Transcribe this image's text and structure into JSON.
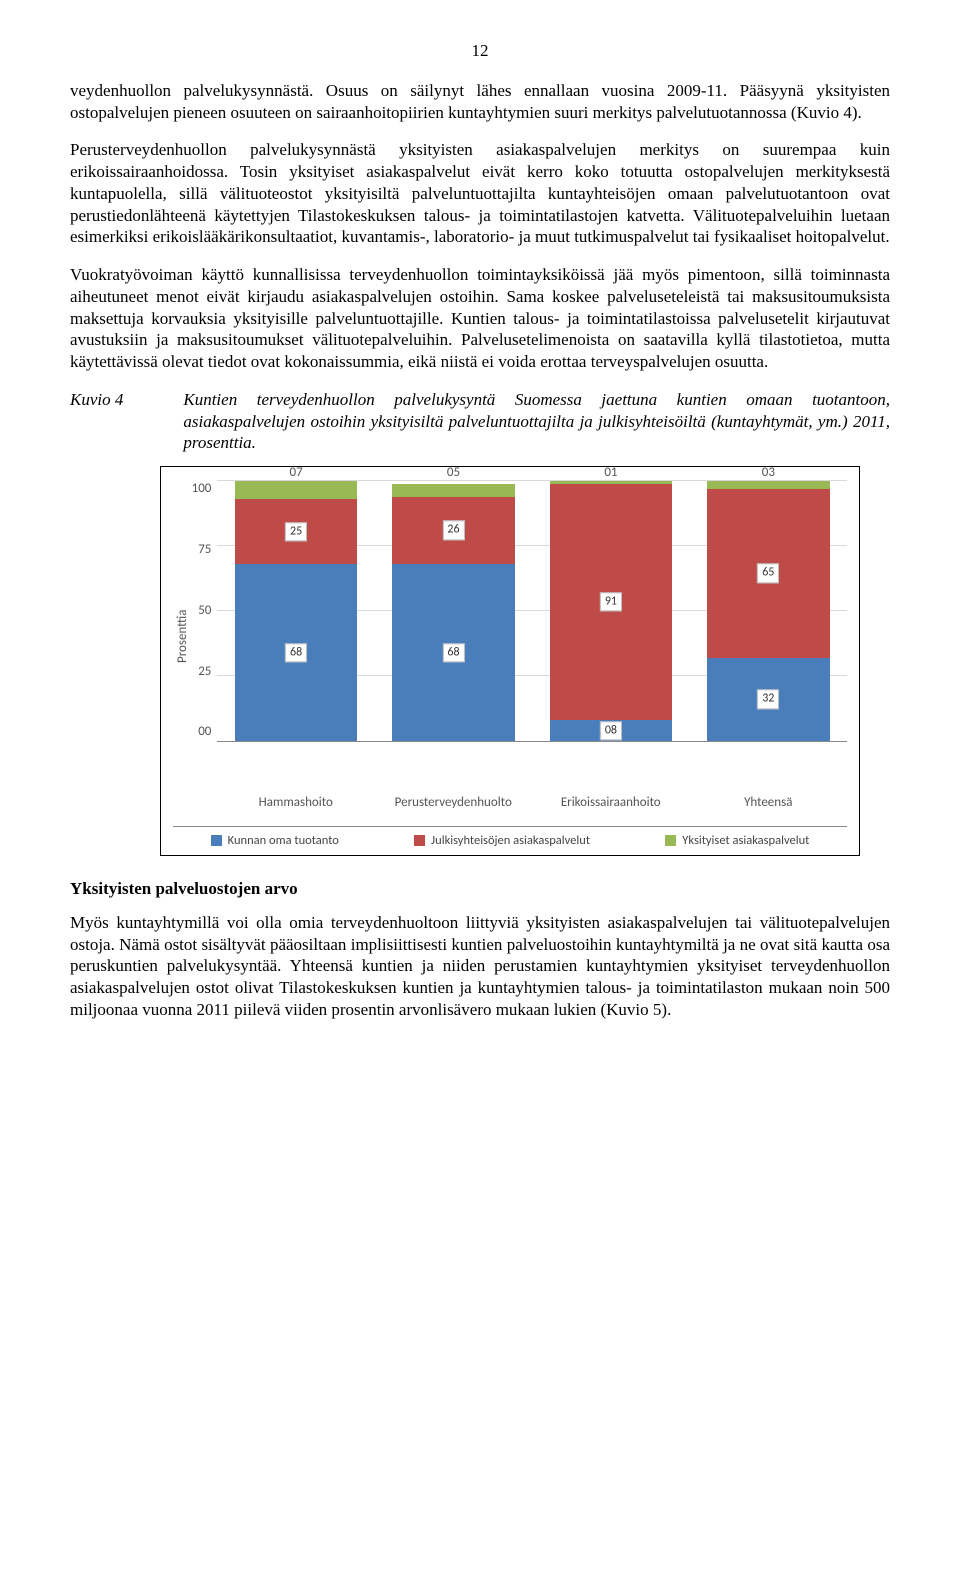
{
  "page_number": "12",
  "paragraphs": {
    "p1": "veydenhuollon palvelukysynnästä. Osuus on säilynyt lähes ennallaan vuosina 2009-11. Pääsyynä yksityisten ostopalvelujen pieneen osuuteen on sairaanhoitopiirien kuntayhtymien suuri merkitys palvelutuotannossa (Kuvio 4).",
    "p2": "Perusterveydenhuollon palvelukysynnästä yksityisten asiakaspalvelujen merkitys on suurempaa kuin erikoissairaanhoidossa. Tosin yksityiset asiakaspalvelut eivät kerro koko totuutta ostopalvelujen merkityksestä kuntapuolella, sillä välituoteostot yksityisiltä palveluntuottajilta kuntayhteisöjen omaan palvelutuotantoon ovat perustiedonlähteenä käytettyjen Tilastokeskuksen talous- ja toimintatilastojen katvetta. Välituotepalveluihin luetaan esimerkiksi erikoislääkärikonsultaatiot, kuvantamis-, laboratorio- ja muut tutkimuspalvelut tai fysikaaliset hoitopalvelut.",
    "p3": "Vuokratyövoiman käyttö kunnallisissa terveydenhuollon toimintayksiköissä jää myös pimentoon, sillä toiminnasta aiheutuneet menot eivät kirjaudu asiakaspalvelujen ostoihin. Sama koskee palveluseteleistä tai maksusitoumuksista maksettuja korvauksia yksityisille palveluntuottajille. Kuntien talous- ja toimintatilastoissa palvelusetelit kirjautuvat avustuksiin ja maksusitoumukset välituotepalveluihin. Palvelusetelimenoista on saatavilla kyllä tilastotietoa, mutta käytettävissä olevat tiedot ovat kokonaissummia, eikä niistä ei voida erottaa terveyspalvelujen osuutta.",
    "p4": "Myös kuntayhtymillä voi olla omia terveydenhuoltoon liittyviä yksityisten asiakaspalvelujen tai välituotepalvelujen ostoja. Nämä ostot sisältyvät pääosiltaan implisiittisesti kuntien palveluostoihin kuntayhtymiltä ja ne ovat sitä kautta osa peruskuntien palvelukysyntää. Yhteensä kuntien ja niiden perustamien kuntayhtymien yksityiset terveydenhuollon asiakaspalvelujen ostot olivat Tilastokeskuksen kuntien ja kuntayhtymien talous- ja toimintatilaston mukaan noin 500 miljoonaa vuonna 2011 piilevä viiden prosentin arvonlisävero mukaan lukien (Kuvio 5)."
  },
  "kuvio": {
    "label": "Kuvio 4",
    "caption": "Kuntien terveydenhuollon palvelukysyntä Suomessa jaettuna kuntien omaan tuotantoon, asiakaspalvelujen ostoihin yksityisiltä palveluntuottajilta ja julkisyhteisöiltä (kuntayhtymät, ym.) 2011, prosenttia."
  },
  "subheading": "Yksityisten palveluostojen arvo",
  "chart": {
    "type": "stacked-bar",
    "y_label": "Prosenttia",
    "y_ticks": [
      "100",
      "75",
      "50",
      "25",
      "00"
    ],
    "ylim": [
      0,
      100
    ],
    "categories": [
      "Hammashoito",
      "Perusterveydenhuolto",
      "Erikoissairaanhoito",
      "Yhteensä"
    ],
    "series": [
      {
        "name": "Kunnan oma tuotanto",
        "color": "#4a7ebb"
      },
      {
        "name": "Julkisyhteisöjen asiakaspalvelut",
        "color": "#be4b48"
      },
      {
        "name": "Yksityiset asiakaspalvelut",
        "color": "#98b954"
      }
    ],
    "data": [
      {
        "own": 68,
        "public": 25,
        "private": 7,
        "own_label": "68",
        "public_label": "25",
        "private_label": "07"
      },
      {
        "own": 68,
        "public": 26,
        "private": 5,
        "own_label": "68",
        "public_label": "26",
        "private_label": "05"
      },
      {
        "own": 8,
        "public": 91,
        "private": 1,
        "own_label": "08",
        "public_label": "91",
        "private_label": "01"
      },
      {
        "own": 32,
        "public": 65,
        "private": 3,
        "own_label": "32",
        "public_label": "65",
        "private_label": "03"
      }
    ],
    "background_color": "#ffffff",
    "grid_color": "#d9d9d9",
    "bar_width": 0.78,
    "label_fontsize": 13
  }
}
